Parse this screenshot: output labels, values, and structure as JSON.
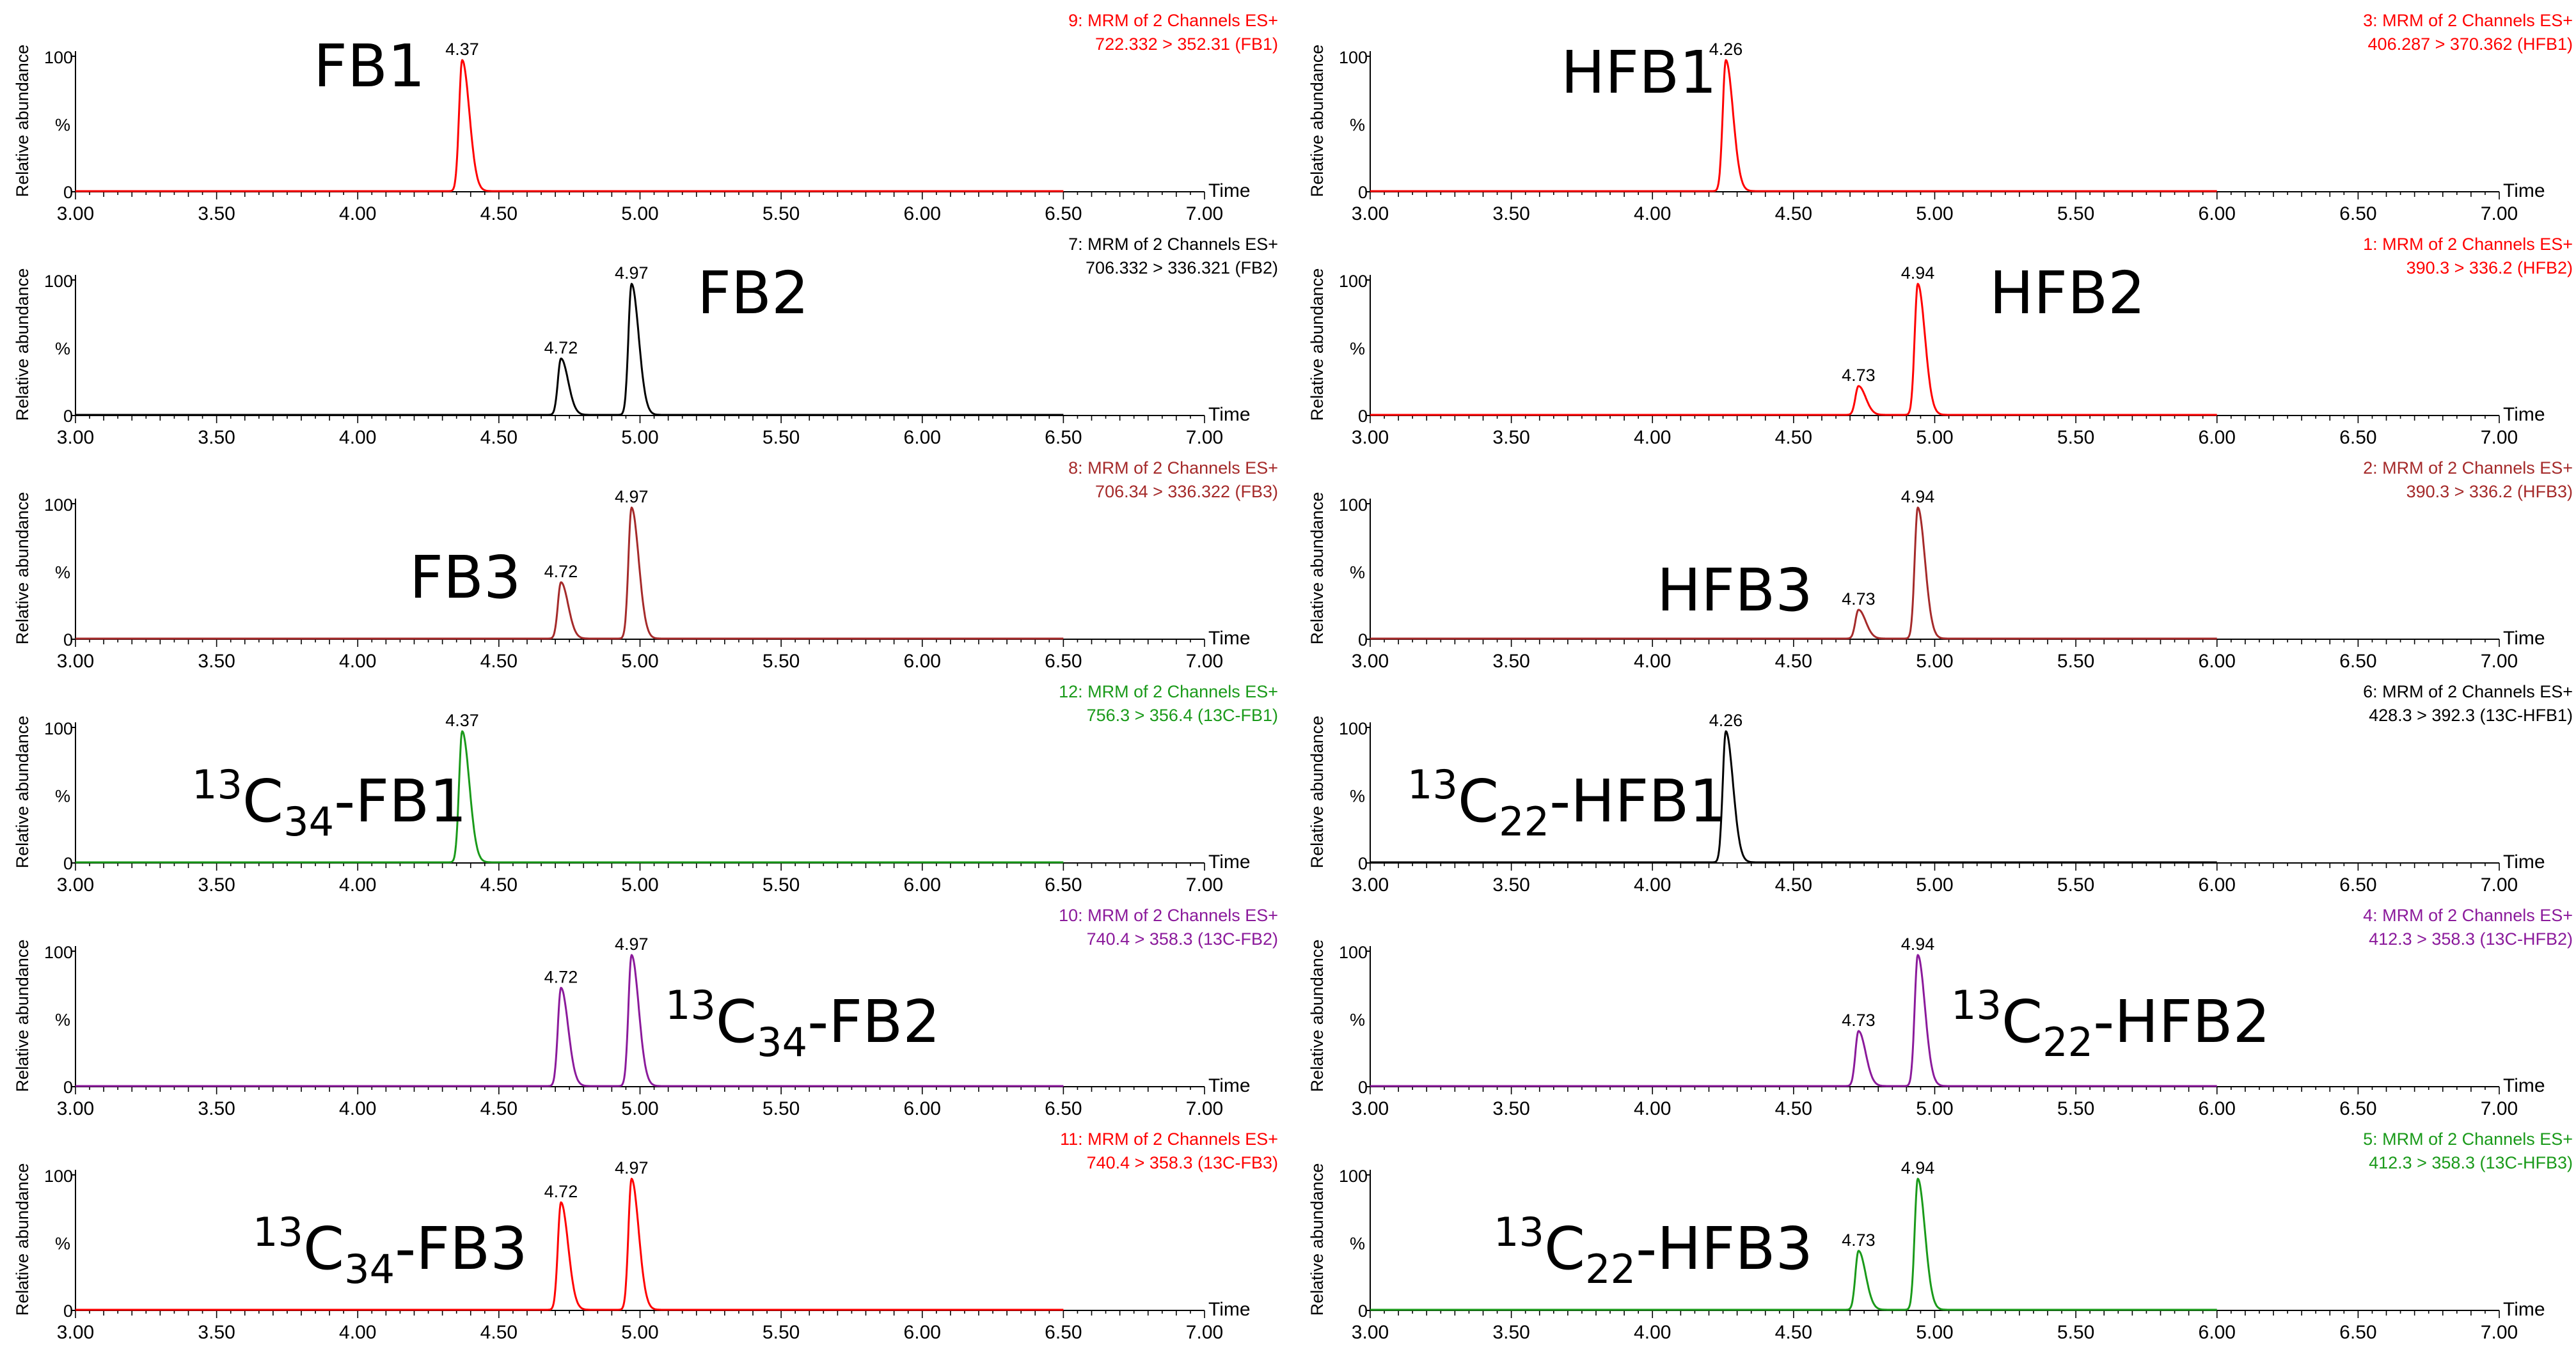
{
  "figure": {
    "ylabel": "Relative abundance",
    "y_percent_symbol": "%",
    "x_axis_title": "Time",
    "y_ticks": [
      "100",
      "0"
    ]
  },
  "chart_data": [
    {
      "type": "line",
      "compound": {
        "main": "FB1",
        "iso": "",
        "sub": ""
      },
      "header": [
        "9: MRM of 2 Channels ES+",
        "722.332 > 352.31 (FB1)"
      ],
      "color": "#ff0000",
      "xlim": [
        3.0,
        7.0
      ],
      "x_data_end": 6.5,
      "x_ticks": [
        "3.00",
        "3.50",
        "4.00",
        "4.50",
        "5.00",
        "5.50",
        "6.00",
        "6.50",
        "7.00"
      ],
      "ylim": [
        0,
        100
      ],
      "peaks": [
        {
          "rt": 4.37,
          "height": 100,
          "label": "4.37"
        }
      ]
    },
    {
      "type": "line",
      "compound": {
        "main": "HFB1",
        "iso": "",
        "sub": ""
      },
      "header": [
        "3: MRM of 2 Channels ES+",
        "406.287 > 370.362 (HFB1)"
      ],
      "color": "#ff0000",
      "xlim": [
        3.0,
        7.0
      ],
      "x_data_end": 6.0,
      "x_ticks": [
        "3.00",
        "3.50",
        "4.00",
        "4.50",
        "5.00",
        "5.50",
        "6.00",
        "6.50",
        "7.00"
      ],
      "ylim": [
        0,
        100
      ],
      "peaks": [
        {
          "rt": 4.26,
          "height": 100,
          "label": "4.26"
        }
      ]
    },
    {
      "type": "line",
      "compound": {
        "main": "FB2",
        "iso": "",
        "sub": ""
      },
      "header": [
        "7: MRM of 2 Channels ES+",
        "706.332 > 336.321 (FB2)"
      ],
      "color": "#000000",
      "xlim": [
        3.0,
        7.0
      ],
      "x_data_end": 6.5,
      "x_ticks": [
        "3.00",
        "3.50",
        "4.00",
        "4.50",
        "5.00",
        "5.50",
        "6.00",
        "6.50",
        "7.00"
      ],
      "ylim": [
        0,
        100
      ],
      "peaks": [
        {
          "rt": 4.72,
          "height": 43,
          "label": "4.72"
        },
        {
          "rt": 4.97,
          "height": 100,
          "label": "4.97"
        }
      ]
    },
    {
      "type": "line",
      "compound": {
        "main": "HFB2",
        "iso": "",
        "sub": ""
      },
      "header": [
        "1: MRM of 2 Channels ES+",
        "390.3 > 336.2 (HFB2)"
      ],
      "color": "#ff0000",
      "xlim": [
        3.0,
        7.0
      ],
      "x_data_end": 6.0,
      "x_ticks": [
        "3.00",
        "3.50",
        "4.00",
        "4.50",
        "5.00",
        "5.50",
        "6.00",
        "6.50",
        "7.00"
      ],
      "ylim": [
        0,
        100
      ],
      "peaks": [
        {
          "rt": 4.73,
          "height": 22,
          "label": "4.73"
        },
        {
          "rt": 4.94,
          "height": 100,
          "label": "4.94"
        }
      ]
    },
    {
      "type": "line",
      "compound": {
        "main": "FB3",
        "iso": "",
        "sub": ""
      },
      "header": [
        "8: MRM of 2 Channels ES+",
        "706.34 > 336.322 (FB3)"
      ],
      "color": "#a52a2a",
      "xlim": [
        3.0,
        7.0
      ],
      "x_data_end": 6.5,
      "x_ticks": [
        "3.00",
        "3.50",
        "4.00",
        "4.50",
        "5.00",
        "5.50",
        "6.00",
        "6.50",
        "7.00"
      ],
      "ylim": [
        0,
        100
      ],
      "peaks": [
        {
          "rt": 4.72,
          "height": 43,
          "label": "4.72"
        },
        {
          "rt": 4.97,
          "height": 100,
          "label": "4.97"
        }
      ]
    },
    {
      "type": "line",
      "compound": {
        "main": "HFB3",
        "iso": "",
        "sub": ""
      },
      "header": [
        "2: MRM of 2 Channels ES+",
        "390.3 > 336.2 (HFB3)"
      ],
      "color": "#a52a2a",
      "xlim": [
        3.0,
        7.0
      ],
      "x_data_end": 6.0,
      "x_ticks": [
        "3.00",
        "3.50",
        "4.00",
        "4.50",
        "5.00",
        "5.50",
        "6.00",
        "6.50",
        "7.00"
      ],
      "ylim": [
        0,
        100
      ],
      "peaks": [
        {
          "rt": 4.73,
          "height": 22,
          "label": "4.73"
        },
        {
          "rt": 4.94,
          "height": 100,
          "label": "4.94"
        }
      ]
    },
    {
      "type": "line",
      "compound": {
        "main": "-FB1",
        "iso": "13",
        "sub": "34"
      },
      "header": [
        "12: MRM of 2 Channels ES+",
        "756.3 > 356.4 (13C-FB1)"
      ],
      "color": "#1a9a1a",
      "xlim": [
        3.0,
        7.0
      ],
      "x_data_end": 6.5,
      "x_ticks": [
        "3.00",
        "3.50",
        "4.00",
        "4.50",
        "5.00",
        "5.50",
        "6.00",
        "6.50",
        "7.00"
      ],
      "ylim": [
        0,
        100
      ],
      "peaks": [
        {
          "rt": 4.37,
          "height": 100,
          "label": "4.37"
        }
      ]
    },
    {
      "type": "line",
      "compound": {
        "main": "-HFB1",
        "iso": "13",
        "sub": "22"
      },
      "header": [
        "6: MRM of 2 Channels ES+",
        "428.3 > 392.3 (13C-HFB1)"
      ],
      "color": "#000000",
      "xlim": [
        3.0,
        7.0
      ],
      "x_data_end": 6.0,
      "x_ticks": [
        "3.00",
        "3.50",
        "4.00",
        "4.50",
        "5.00",
        "5.50",
        "6.00",
        "6.50",
        "7.00"
      ],
      "ylim": [
        0,
        100
      ],
      "peaks": [
        {
          "rt": 4.26,
          "height": 100,
          "label": "4.26"
        }
      ]
    },
    {
      "type": "line",
      "compound": {
        "main": "-FB2",
        "iso": "13",
        "sub": "34"
      },
      "header": [
        "10: MRM of 2 Channels ES+",
        "740.4 > 358.3 (13C-FB2)"
      ],
      "color": "#8b1a9b",
      "xlim": [
        3.0,
        7.0
      ],
      "x_data_end": 6.5,
      "x_ticks": [
        "3.00",
        "3.50",
        "4.00",
        "4.50",
        "5.00",
        "5.50",
        "6.00",
        "6.50",
        "7.00"
      ],
      "ylim": [
        0,
        100
      ],
      "peaks": [
        {
          "rt": 4.72,
          "height": 75,
          "label": "4.72"
        },
        {
          "rt": 4.97,
          "height": 100,
          "label": "4.97"
        }
      ]
    },
    {
      "type": "line",
      "compound": {
        "main": "-HFB2",
        "iso": "13",
        "sub": "22"
      },
      "header": [
        "4: MRM of 2 Channels ES+",
        "412.3 > 358.3 (13C-HFB2)"
      ],
      "color": "#8b1a9b",
      "xlim": [
        3.0,
        7.0
      ],
      "x_data_end": 6.0,
      "x_ticks": [
        "3.00",
        "3.50",
        "4.00",
        "4.50",
        "5.00",
        "5.50",
        "6.00",
        "6.50",
        "7.00"
      ],
      "ylim": [
        0,
        100
      ],
      "peaks": [
        {
          "rt": 4.73,
          "height": 42,
          "label": "4.73"
        },
        {
          "rt": 4.94,
          "height": 100,
          "label": "4.94"
        }
      ]
    },
    {
      "type": "line",
      "compound": {
        "main": "-FB3",
        "iso": "13",
        "sub": "34"
      },
      "header": [
        "11: MRM of 2 Channels ES+",
        "740.4 > 358.3 (13C-FB3)"
      ],
      "color": "#ff0000",
      "xlim": [
        3.0,
        7.0
      ],
      "x_data_end": 6.5,
      "x_ticks": [
        "3.00",
        "3.50",
        "4.00",
        "4.50",
        "5.00",
        "5.50",
        "6.00",
        "6.50",
        "7.00"
      ],
      "ylim": [
        0,
        100
      ],
      "peaks": [
        {
          "rt": 4.72,
          "height": 82,
          "label": "4.72"
        },
        {
          "rt": 4.97,
          "height": 100,
          "label": "4.97"
        }
      ]
    },
    {
      "type": "line",
      "compound": {
        "main": "-HFB3",
        "iso": "13",
        "sub": "22"
      },
      "header": [
        "5: MRM of 2 Channels ES+",
        "412.3 > 358.3 (13C-HFB3)"
      ],
      "color": "#1a9a1a",
      "xlim": [
        3.0,
        7.0
      ],
      "x_data_end": 6.0,
      "x_ticks": [
        "3.00",
        "3.50",
        "4.00",
        "4.50",
        "5.00",
        "5.50",
        "6.00",
        "6.50",
        "7.00"
      ],
      "ylim": [
        0,
        100
      ],
      "peaks": [
        {
          "rt": 4.73,
          "height": 45,
          "label": "4.73"
        },
        {
          "rt": 4.94,
          "height": 100,
          "label": "4.94"
        }
      ]
    }
  ]
}
